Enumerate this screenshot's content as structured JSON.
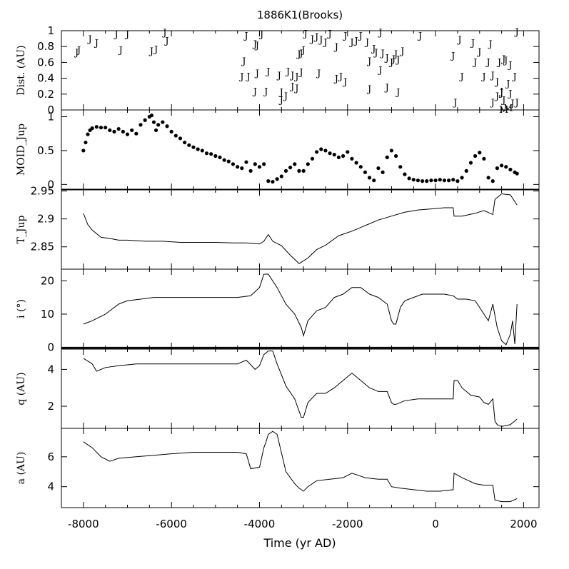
{
  "chart_data": {
    "type": "multi-panel",
    "title": "1886K1(Brooks)",
    "xlabel": "Time (yr AD)",
    "xlim": [
      -8500,
      2350
    ],
    "x_ticks": [
      -8000,
      -6000,
      -4000,
      -2000,
      0,
      2000
    ],
    "panels": [
      {
        "id": "dist",
        "type": "scatter",
        "ylabel": "Dist. (AU)",
        "ylim": [
          0,
          1
        ],
        "y_ticks": [
          0,
          0.2,
          0.4,
          0.6,
          0.8,
          1
        ],
        "y_tick_labels": [
          "0",
          "0.2",
          "0.4",
          "0.6",
          "0.8",
          "1"
        ],
        "markers": [
          {
            "label": "J",
            "points": [
              [
                -8150,
                0.73
              ],
              [
                -8100,
                0.76
              ],
              [
                -7850,
                0.9
              ],
              [
                -7700,
                0.85
              ],
              [
                -7250,
                0.96
              ],
              [
                -7150,
                0.76
              ],
              [
                -7000,
                0.96
              ],
              [
                -6450,
                0.75
              ],
              [
                -6350,
                0.77
              ],
              [
                -6150,
                0.98
              ],
              [
                -6100,
                0.88
              ],
              [
                -4300,
                0.94
              ],
              [
                -4100,
                0.84
              ],
              [
                -4050,
                0.82
              ],
              [
                -3950,
                0.96
              ],
              [
                -4350,
                0.62
              ],
              [
                -4400,
                0.43
              ],
              [
                -4250,
                0.43
              ],
              [
                -4050,
                0.47
              ],
              [
                -3800,
                0.49
              ],
              [
                -3550,
                0.44
              ],
              [
                -3350,
                0.49
              ],
              [
                -3250,
                0.44
              ],
              [
                -3150,
                0.43
              ],
              [
                -3050,
                0.48
              ],
              [
                -4100,
                0.24
              ],
              [
                -3850,
                0.24
              ],
              [
                -3500,
                0.23
              ],
              [
                -3500,
                0.13
              ],
              [
                -3400,
                0.18
              ],
              [
                -3250,
                0.3
              ],
              [
                -3150,
                0.28
              ],
              [
                -3100,
                0.71
              ],
              [
                -3050,
                0.72
              ],
              [
                -3000,
                0.76
              ],
              [
                -2950,
                0.97
              ],
              [
                -2800,
                0.9
              ],
              [
                -2700,
                0.93
              ],
              [
                -2600,
                0.89
              ],
              [
                -2500,
                0.86
              ],
              [
                -2400,
                0.97
              ],
              [
                -2250,
                0.8
              ],
              [
                -2050,
                0.94
              ],
              [
                -1900,
                0.86
              ],
              [
                -1800,
                0.88
              ],
              [
                -1700,
                0.94
              ],
              [
                -1550,
                0.86
              ],
              [
                -1500,
                0.62
              ],
              [
                -1400,
                0.78
              ],
              [
                -1250,
                0.98
              ],
              [
                -1100,
                0.66
              ],
              [
                -950,
                0.65
              ],
              [
                -850,
                0.64
              ],
              [
                -750,
                0.75
              ],
              [
                -350,
                0.94
              ],
              [
                -2650,
                0.47
              ],
              [
                -2250,
                0.4
              ],
              [
                -2150,
                0.43
              ],
              [
                -2050,
                0.36
              ],
              [
                -1350,
                0.73
              ],
              [
                -1200,
                0.72
              ],
              [
                -1000,
                0.61
              ],
              [
                -900,
                0.71
              ],
              [
                -1250,
                0.51
              ],
              [
                -1500,
                0.27
              ],
              [
                -1100,
                0.29
              ],
              [
                -850,
                0.23
              ],
              [
                400,
                0.69
              ],
              [
                450,
                0.1
              ],
              [
                550,
                0.89
              ],
              [
                600,
                0.43
              ],
              [
                850,
                0.85
              ],
              [
                900,
                0.61
              ],
              [
                1000,
                0.74
              ],
              [
                1100,
                0.43
              ],
              [
                1200,
                0.61
              ],
              [
                1250,
                0.84
              ],
              [
                1300,
                0.44
              ],
              [
                1400,
                0.36
              ],
              [
                1450,
                0.61
              ],
              [
                1500,
                0.22
              ],
              [
                1550,
                0.65
              ],
              [
                1600,
                0.63
              ],
              [
                1650,
                0.34
              ],
              [
                1700,
                0.57
              ],
              [
                1800,
                0.43
              ],
              [
                1850,
                0.99
              ],
              [
                1850,
                0.1
              ],
              [
                1300,
                0.1
              ],
              [
                1400,
                0.18
              ],
              [
                1500,
                0.24
              ],
              [
                1700,
                0.21
              ],
              [
                1750,
                0.09
              ],
              [
                1550,
                0.13
              ]
            ]
          },
          {
            "label": "M",
            "points": [
              [
                1550,
                0.01
              ],
              [
                1650,
                0.03
              ]
            ]
          }
        ]
      },
      {
        "id": "moid",
        "type": "scatter",
        "ylabel": "MOID_Jup",
        "ylim": [
          -0.07,
          1.1
        ],
        "y_ticks": [
          0,
          0.5,
          1
        ],
        "y_tick_labels": [
          "0",
          "0.5",
          "1"
        ],
        "x": [
          -8000,
          -7950,
          -7900,
          -7850,
          -7800,
          -7700,
          -7600,
          -7500,
          -7400,
          -7300,
          -7200,
          -7100,
          -7000,
          -6900,
          -6800,
          -6700,
          -6600,
          -6500,
          -6450,
          -6400,
          -6350,
          -6300,
          -6200,
          -6100,
          -6000,
          -5900,
          -5800,
          -5700,
          -5600,
          -5500,
          -5400,
          -5300,
          -5200,
          -5100,
          -5000,
          -4900,
          -4800,
          -4700,
          -4600,
          -4500,
          -4400,
          -4300,
          -4200,
          -4100,
          -4000,
          -3900,
          -3800,
          -3700,
          -3600,
          -3500,
          -3400,
          -3300,
          -3200,
          -3100,
          -3000,
          -2900,
          -2800,
          -2700,
          -2600,
          -2500,
          -2400,
          -2300,
          -2200,
          -2100,
          -2000,
          -1900,
          -1800,
          -1700,
          -1600,
          -1500,
          -1400,
          -1300,
          -1200,
          -1100,
          -1000,
          -900,
          -800,
          -700,
          -600,
          -500,
          -400,
          -300,
          -200,
          -100,
          0,
          100,
          200,
          300,
          400,
          500,
          600,
          700,
          800,
          900,
          1000,
          1100,
          1200,
          1300,
          1400,
          1500,
          1600,
          1700,
          1800,
          1850
        ],
        "values": [
          0.5,
          0.62,
          0.74,
          0.8,
          0.83,
          0.85,
          0.84,
          0.84,
          0.8,
          0.78,
          0.82,
          0.78,
          0.74,
          0.8,
          0.75,
          0.88,
          0.95,
          1.0,
          1.02,
          0.92,
          0.8,
          0.88,
          0.92,
          0.86,
          0.78,
          0.72,
          0.68,
          0.62,
          0.58,
          0.55,
          0.52,
          0.5,
          0.46,
          0.45,
          0.42,
          0.4,
          0.36,
          0.34,
          0.3,
          0.26,
          0.24,
          0.33,
          0.2,
          0.3,
          0.26,
          0.3,
          0.05,
          0.04,
          0.08,
          0.12,
          0.2,
          0.25,
          0.3,
          0.2,
          0.2,
          0.3,
          0.38,
          0.48,
          0.52,
          0.5,
          0.46,
          0.44,
          0.4,
          0.42,
          0.48,
          0.38,
          0.32,
          0.26,
          0.18,
          0.1,
          0.06,
          0.24,
          0.18,
          0.4,
          0.5,
          0.42,
          0.26,
          0.15,
          0.09,
          0.07,
          0.06,
          0.05,
          0.05,
          0.06,
          0.06,
          0.07,
          0.06,
          0.06,
          0.07,
          0.05,
          0.1,
          0.2,
          0.32,
          0.42,
          0.47,
          0.38,
          0.1,
          0.05,
          0.24,
          0.28,
          0.26,
          0.22,
          0.18,
          0.16
        ]
      },
      {
        "id": "tjup",
        "type": "line",
        "ylabel": "T_Jup",
        "ylim": [
          2.81,
          2.952
        ],
        "y_ticks": [
          2.85,
          2.9,
          2.95
        ],
        "y_tick_labels": [
          "2.85",
          "2.9",
          "2.95"
        ],
        "x": [
          -8000,
          -7900,
          -7800,
          -7600,
          -7400,
          -7200,
          -7000,
          -6600,
          -6200,
          -5800,
          -5400,
          -5000,
          -4600,
          -4300,
          -4000,
          -3900,
          -3800,
          -3700,
          -3500,
          -3300,
          -3100,
          -3000,
          -2900,
          -2700,
          -2500,
          -2200,
          -1900,
          -1600,
          -1300,
          -1000,
          -700,
          -400,
          -100,
          200,
          400,
          420,
          600,
          900,
          1100,
          1300,
          1350,
          1500,
          1700,
          1850
        ],
        "values": [
          2.91,
          2.89,
          2.88,
          2.867,
          2.865,
          2.862,
          2.862,
          2.86,
          2.86,
          2.858,
          2.858,
          2.858,
          2.857,
          2.857,
          2.855,
          2.86,
          2.872,
          2.86,
          2.852,
          2.835,
          2.82,
          2.825,
          2.83,
          2.845,
          2.853,
          2.87,
          2.878,
          2.888,
          2.898,
          2.905,
          2.912,
          2.916,
          2.918,
          2.92,
          2.92,
          2.905,
          2.905,
          2.91,
          2.915,
          2.908,
          2.935,
          2.945,
          2.943,
          2.925
        ]
      },
      {
        "id": "incl",
        "type": "line",
        "ylabel": "i (°)",
        "ylim": [
          -0.3,
          23.5
        ],
        "y_ticks": [
          0,
          10,
          20
        ],
        "y_tick_labels": [
          "0",
          "10",
          "20"
        ],
        "x": [
          -8000,
          -7800,
          -7500,
          -7200,
          -7000,
          -6700,
          -6400,
          -6000,
          -5500,
          -5000,
          -4500,
          -4200,
          -4000,
          -3900,
          -3800,
          -3600,
          -3400,
          -3200,
          -3050,
          -3000,
          -2900,
          -2700,
          -2500,
          -2300,
          -2100,
          -1900,
          -1700,
          -1500,
          -1300,
          -1100,
          -1000,
          -950,
          -900,
          -800,
          -700,
          -500,
          -300,
          -100,
          200,
          400,
          500,
          700,
          900,
          1000,
          1100,
          1200,
          1300,
          1400,
          1500,
          1600,
          1700,
          1750,
          1800,
          1850
        ],
        "values": [
          7,
          8,
          10,
          13,
          14,
          14.5,
          15,
          15,
          15,
          15,
          15,
          15.5,
          18,
          22,
          22,
          18,
          13,
          10,
          6,
          3.5,
          8,
          11,
          12,
          15,
          16,
          18,
          18,
          16,
          15,
          13,
          8,
          7,
          7,
          12,
          14,
          15,
          16,
          16,
          16,
          15.5,
          14.5,
          14.5,
          14,
          12,
          10,
          8,
          13,
          6,
          2,
          0.8,
          4,
          8,
          1,
          13
        ]
      },
      {
        "id": "q",
        "type": "line",
        "ylabel": "q (AU)",
        "ylim": [
          0.8,
          5.1
        ],
        "y_ticks": [
          2,
          4
        ],
        "y_tick_labels": [
          "2",
          "4"
        ],
        "x": [
          -8000,
          -7800,
          -7700,
          -7500,
          -7200,
          -6800,
          -6400,
          -6000,
          -5500,
          -5000,
          -4500,
          -4300,
          -4100,
          -4000,
          -3900,
          -3800,
          -3700,
          -3600,
          -3400,
          -3200,
          -3050,
          -3000,
          -2900,
          -2700,
          -2500,
          -2300,
          -2200,
          -2100,
          -1900,
          -1700,
          -1500,
          -1300,
          -1100,
          -1000,
          -950,
          -900,
          -700,
          -400,
          -100,
          200,
          400,
          420,
          500,
          600,
          800,
          1000,
          1100,
          1200,
          1300,
          1350,
          1400,
          1500,
          1700,
          1850
        ],
        "values": [
          4.6,
          4.3,
          3.9,
          4.1,
          4.2,
          4.3,
          4.3,
          4.3,
          4.3,
          4.3,
          4.3,
          4.5,
          4.0,
          4.2,
          4.8,
          5.0,
          5.0,
          4.3,
          3.1,
          2.4,
          1.4,
          1.4,
          2.2,
          2.7,
          2.7,
          3.0,
          3.2,
          3.4,
          3.8,
          3.4,
          3.0,
          2.8,
          2.8,
          2.2,
          2.1,
          2.1,
          2.3,
          2.4,
          2.4,
          2.4,
          2.4,
          3.4,
          3.4,
          3.0,
          2.6,
          2.5,
          2.2,
          2.1,
          2.4,
          1.2,
          1.0,
          0.9,
          1.0,
          1.3
        ]
      },
      {
        "id": "a",
        "type": "line",
        "ylabel": "a (AU)",
        "ylim": [
          2.6,
          7.9
        ],
        "y_ticks": [
          4,
          6
        ],
        "y_tick_labels": [
          "4",
          "6"
        ],
        "x": [
          -8000,
          -7800,
          -7600,
          -7400,
          -7200,
          -6800,
          -6400,
          -6000,
          -5500,
          -5000,
          -4500,
          -4300,
          -4200,
          -4000,
          -3900,
          -3850,
          -3800,
          -3700,
          -3600,
          -3400,
          -3200,
          -3100,
          -3000,
          -2900,
          -2700,
          -2400,
          -2100,
          -1900,
          -1600,
          -1300,
          -1100,
          -1000,
          -800,
          -500,
          -200,
          100,
          400,
          420,
          600,
          900,
          1100,
          1300,
          1350,
          1500,
          1700,
          1850
        ],
        "values": [
          7.0,
          6.6,
          6.0,
          5.7,
          5.9,
          6.0,
          6.1,
          6.2,
          6.3,
          6.3,
          6.3,
          6.2,
          5.2,
          5.3,
          6.6,
          7.0,
          7.5,
          7.7,
          7.5,
          5.0,
          4.2,
          3.9,
          3.7,
          4.0,
          4.4,
          4.5,
          4.6,
          4.9,
          4.6,
          4.5,
          4.5,
          4.0,
          3.9,
          3.8,
          3.7,
          3.7,
          3.8,
          4.9,
          4.6,
          4.2,
          4.1,
          4.1,
          3.1,
          3.0,
          3.0,
          3.2
        ]
      }
    ]
  }
}
